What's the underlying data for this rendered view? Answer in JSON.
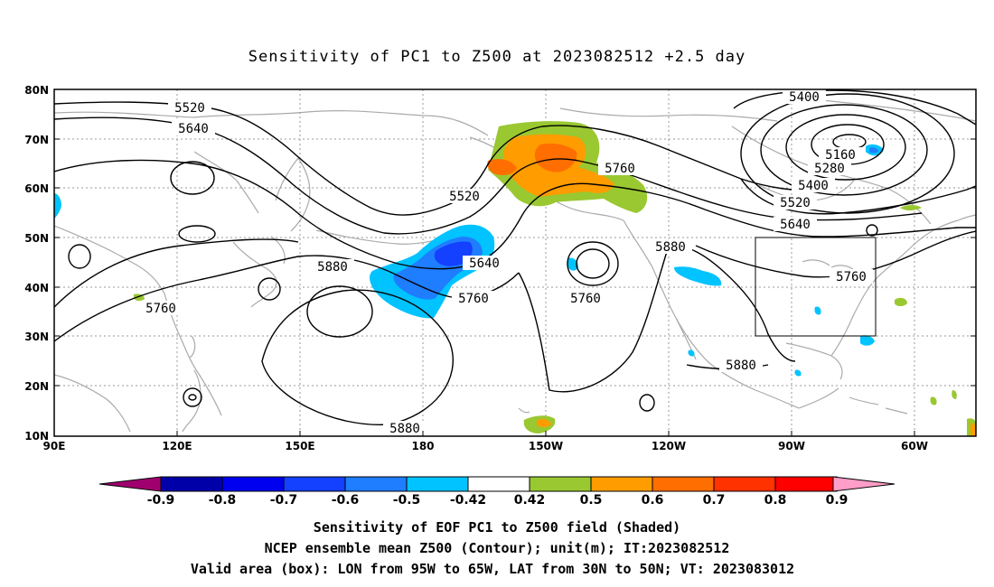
{
  "title": "Sensitivity of PC1 to Z500 at 2023082512 +2.5 day",
  "lat_labels": [
    "80N",
    "70N",
    "60N",
    "50N",
    "40N",
    "30N",
    "20N",
    "10N"
  ],
  "lon_labels": [
    "90E",
    "120E",
    "150E",
    "180",
    "150W",
    "120W",
    "90W",
    "60W"
  ],
  "contour_labels": [
    "5520",
    "5640",
    "5520",
    "5760",
    "5880",
    "5640",
    "5760",
    "5760",
    "5880",
    "5880",
    "5400",
    "5160",
    "5280",
    "5400",
    "5520",
    "5640",
    "5760",
    "5880",
    "5760"
  ],
  "colorbar": {
    "labels": [
      "-0.9",
      "-0.8",
      "-0.7",
      "-0.6",
      "-0.5",
      "-0.42",
      "0.42",
      "0.5",
      "0.6",
      "0.7",
      "0.8",
      "0.9"
    ],
    "colors": [
      "#a0006e",
      "#0000a8",
      "#0000f0",
      "#1440ff",
      "#1f7dff",
      "#00c3ff",
      "#ffffff",
      "#99c831",
      "#ff9c00",
      "#ff6e00",
      "#ff3200",
      "#ff0000",
      "#ff9ec8"
    ]
  },
  "captions": [
    "Sensitivity of EOF PC1 to Z500 field (Shaded)",
    "NCEP ensemble mean Z500 (Contour); unit(m); IT:2023082512",
    "Valid area (box): LON from 95W to 65W, LAT from 30N to 50N; VT: 2023083012"
  ],
  "valid_box": {
    "lon_min": -95,
    "lon_max": -65,
    "lat_min": 30,
    "lat_max": 50
  }
}
